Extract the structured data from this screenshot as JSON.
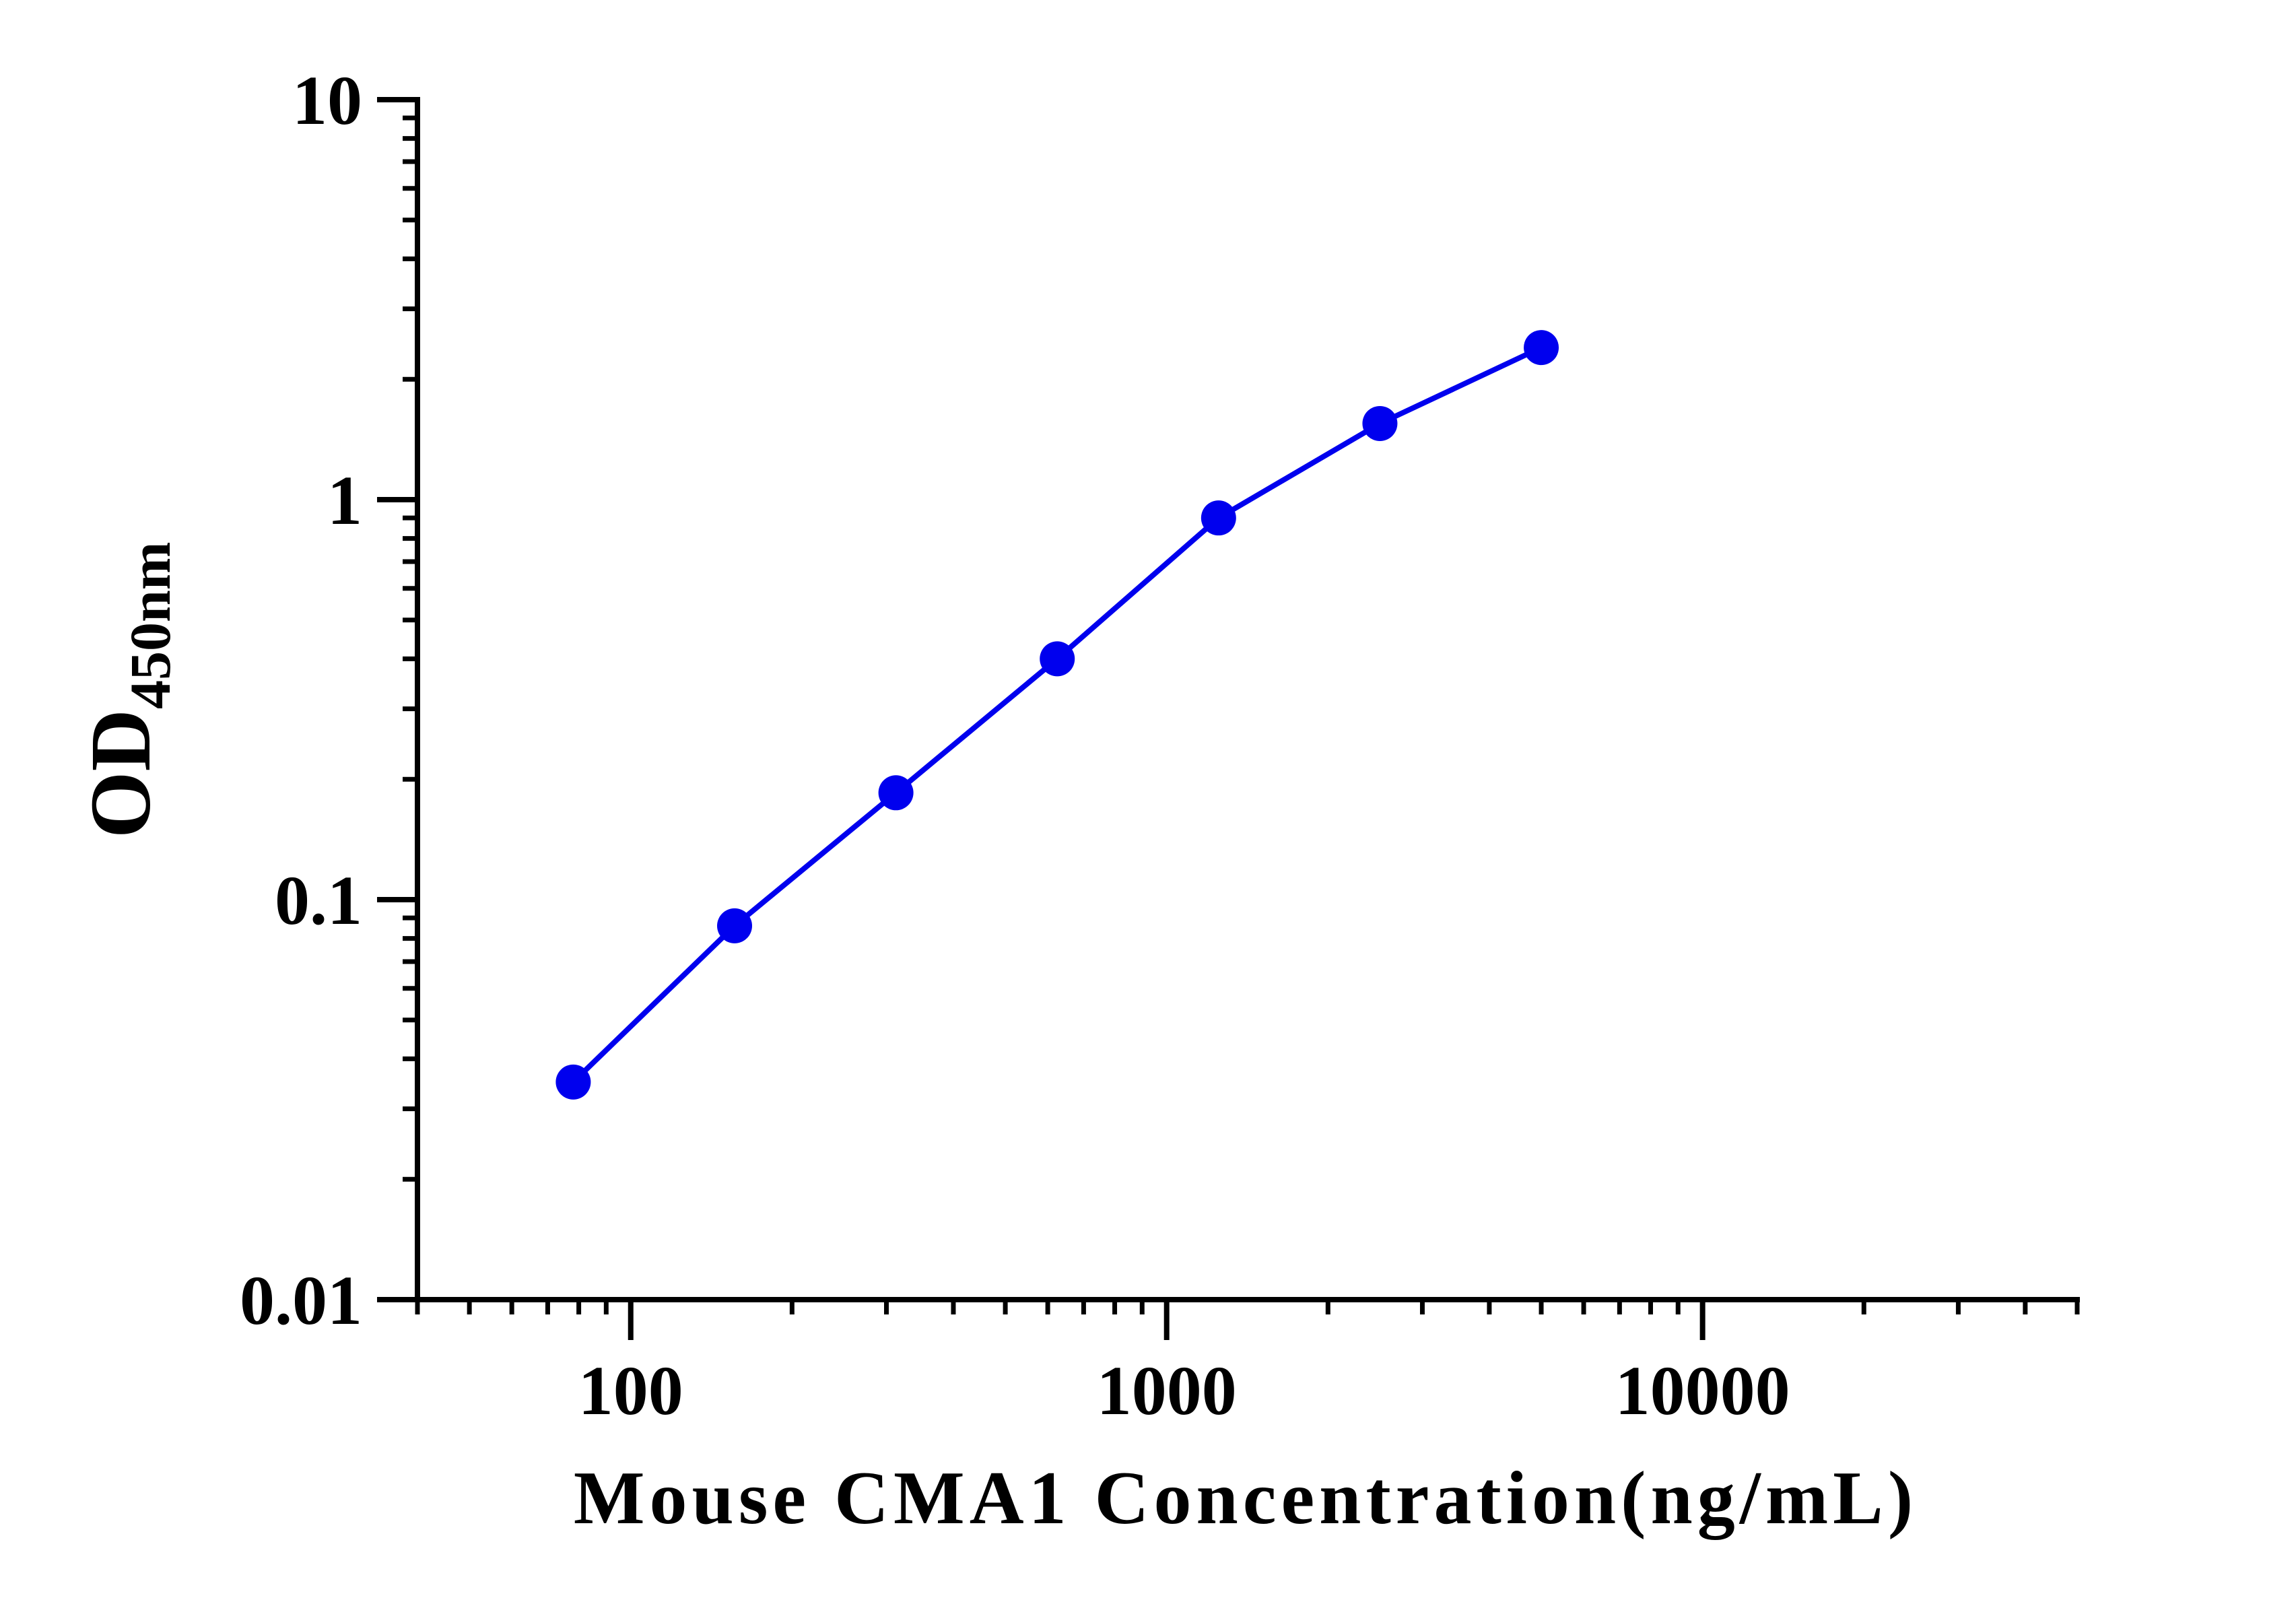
{
  "chart_data": {
    "type": "line",
    "title": "",
    "xlabel": "Mouse CMA1 Concentration(ng/mL)",
    "ylabel": "OD",
    "ylabel_subscript": "450nm",
    "x_scale": "log",
    "y_scale": "log",
    "xlim": [
      40,
      50000
    ],
    "ylim": [
      0.01,
      10
    ],
    "x_ticks": [
      100,
      1000,
      10000
    ],
    "x_tick_labels": [
      "100",
      "1000",
      "10000"
    ],
    "y_ticks": [
      0.01,
      0.1,
      1,
      10
    ],
    "y_tick_labels": [
      "0.01",
      "0.1",
      "1",
      "10"
    ],
    "grid": false,
    "series": [
      {
        "color": "#0000ee",
        "marker": "circle",
        "x": [
          78.125,
          156.25,
          312.5,
          625,
          1250,
          2500,
          5000
        ],
        "y": [
          0.035,
          0.086,
          0.185,
          0.4,
          0.9,
          1.55,
          2.4
        ]
      }
    ]
  }
}
